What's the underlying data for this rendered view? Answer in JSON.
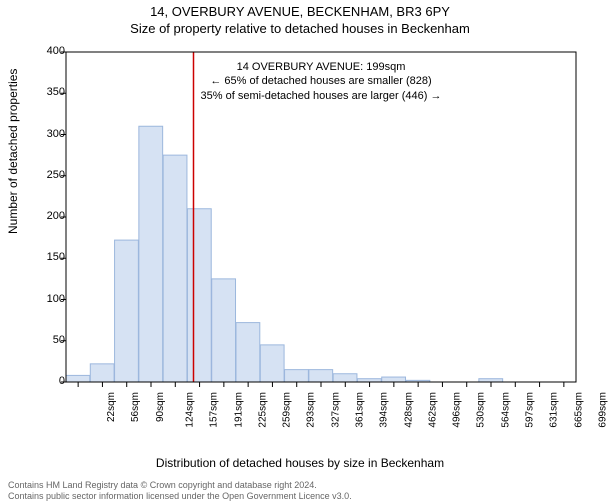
{
  "title_main": "14, OVERBURY AVENUE, BECKENHAM, BR3 6PY",
  "title_sub": "Size of property relative to detached houses in Beckenham",
  "ylabel": "Number of detached properties",
  "xlabel": "Distribution of detached houses by size in Beckenham",
  "footer_line1": "Contains HM Land Registry data © Crown copyright and database right 2024.",
  "footer_line2": "Contains public sector information licensed under the Open Government Licence v3.0.",
  "annotation": {
    "line1": "14 OVERBURY AVENUE: 199sqm",
    "line2": "← 65% of detached houses are smaller (828)",
    "line3": "35% of semi-detached houses are larger (446) →"
  },
  "chart": {
    "type": "histogram",
    "background_color": "#ffffff",
    "plot_border_color": "#000000",
    "bar_fill": "#d6e2f3",
    "bar_stroke": "#9cb7dd",
    "ref_line_color": "#cc0000",
    "ylim": [
      0,
      400
    ],
    "yticks": [
      0,
      50,
      100,
      150,
      200,
      250,
      300,
      350,
      400
    ],
    "categories": [
      "22sqm",
      "56sqm",
      "90sqm",
      "124sqm",
      "157sqm",
      "191sqm",
      "225sqm",
      "259sqm",
      "293sqm",
      "327sqm",
      "361sqm",
      "394sqm",
      "428sqm",
      "462sqm",
      "496sqm",
      "530sqm",
      "564sqm",
      "597sqm",
      "631sqm",
      "665sqm",
      "699sqm"
    ],
    "values": [
      8,
      22,
      172,
      310,
      275,
      210,
      125,
      72,
      45,
      15,
      15,
      10,
      4,
      6,
      2,
      0,
      0,
      4,
      0,
      0,
      0
    ],
    "ref_line_index": 5,
    "title_fontsize": 13,
    "label_fontsize": 12,
    "tick_fontsize": 11
  }
}
